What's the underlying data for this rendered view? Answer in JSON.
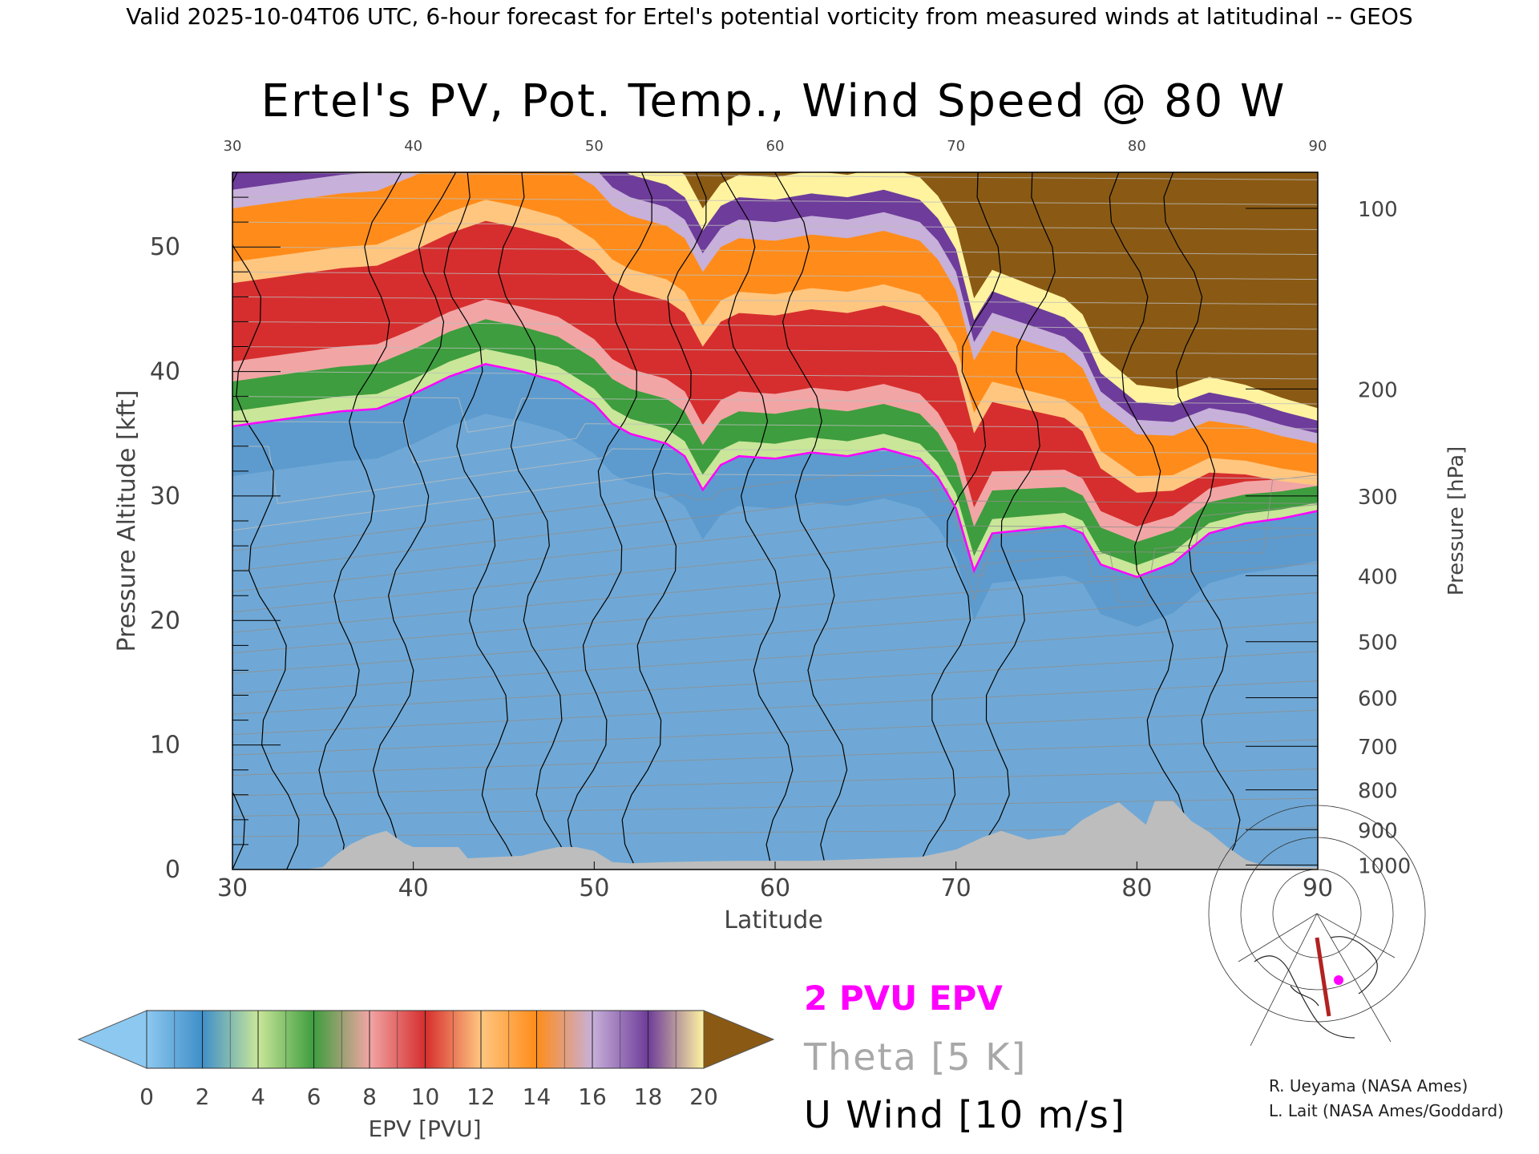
{
  "chart_data": {
    "type": "heatmap",
    "header": "Valid 2025-10-04T06 UTC, 6-hour forecast for Ertel's potential vorticity from measured winds at latitudinal -- GEOS",
    "title": "Ertel's PV, Pot. Temp., Wind Speed @ 80 W",
    "xlabel": "Latitude",
    "ylabel": "Pressure Altitude [kft]",
    "y2label": "Pressure [hPa]",
    "xlim": [
      30,
      90
    ],
    "ylim": [
      0,
      56
    ],
    "x_ticks": [
      30,
      40,
      50,
      60,
      70,
      80,
      90
    ],
    "y_ticks": [
      0,
      10,
      20,
      30,
      40,
      50
    ],
    "pressure_ticks": [
      {
        "hpa": "100",
        "kft": 53.1
      },
      {
        "hpa": "200",
        "kft": 38.6
      },
      {
        "hpa": "300",
        "kft": 30.0
      },
      {
        "hpa": "400",
        "kft": 23.6
      },
      {
        "hpa": "500",
        "kft": 18.3
      },
      {
        "hpa": "600",
        "kft": 13.8
      },
      {
        "hpa": "700",
        "kft": 9.9
      },
      {
        "hpa": "800",
        "kft": 6.4
      },
      {
        "hpa": "900",
        "kft": 3.2
      },
      {
        "hpa": "1000",
        "kft": 0.36
      }
    ],
    "tropopause_kft": [
      [
        30,
        35.6
      ],
      [
        33,
        36.2
      ],
      [
        36,
        36.8
      ],
      [
        38,
        37.0
      ],
      [
        40,
        38.2
      ],
      [
        42,
        39.6
      ],
      [
        44,
        40.6
      ],
      [
        46,
        40.0
      ],
      [
        48,
        39.2
      ],
      [
        50,
        37.4
      ],
      [
        51,
        35.8
      ],
      [
        52,
        35.0
      ],
      [
        54,
        34.2
      ],
      [
        55,
        33.2
      ],
      [
        56,
        30.5
      ],
      [
        57,
        32.5
      ],
      [
        58,
        33.2
      ],
      [
        60,
        33.0
      ],
      [
        62,
        33.5
      ],
      [
        64,
        33.2
      ],
      [
        66,
        33.8
      ],
      [
        68,
        33.0
      ],
      [
        69,
        31.5
      ],
      [
        70,
        29.0
      ],
      [
        71,
        24.0
      ],
      [
        72,
        27.0
      ],
      [
        74,
        27.3
      ],
      [
        76,
        27.6
      ],
      [
        77,
        27.0
      ],
      [
        78,
        24.5
      ],
      [
        80,
        23.5
      ],
      [
        82,
        24.6
      ],
      [
        84,
        27.0
      ],
      [
        86,
        27.8
      ],
      [
        88,
        28.2
      ],
      [
        90,
        28.8
      ]
    ],
    "terrain_kft": [
      [
        30,
        0
      ],
      [
        34,
        0
      ],
      [
        35,
        0.2
      ],
      [
        35.5,
        0.9
      ],
      [
        36.5,
        2.0
      ],
      [
        37.5,
        2.7
      ],
      [
        38.5,
        3.1
      ],
      [
        39.5,
        2.1
      ],
      [
        40,
        1.8
      ],
      [
        41,
        1.8
      ],
      [
        42.5,
        1.8
      ],
      [
        43,
        0.9
      ],
      [
        46,
        1.1
      ],
      [
        47,
        1.5
      ],
      [
        48,
        1.8
      ],
      [
        49,
        1.8
      ],
      [
        50,
        1.5
      ],
      [
        51,
        0.6
      ],
      [
        52,
        0.5
      ],
      [
        54,
        0.6
      ],
      [
        58,
        0.7
      ],
      [
        62,
        0.7
      ],
      [
        64,
        0.8
      ],
      [
        66,
        0.9
      ],
      [
        68,
        1.0
      ],
      [
        70,
        1.6
      ],
      [
        71.5,
        2.6
      ],
      [
        72.5,
        3.1
      ],
      [
        74,
        2.4
      ],
      [
        76,
        2.8
      ],
      [
        77,
        4.0
      ],
      [
        78,
        4.8
      ],
      [
        79,
        5.4
      ],
      [
        80.5,
        3.6
      ],
      [
        81,
        5.5
      ],
      [
        82,
        5.5
      ],
      [
        83,
        3.9
      ],
      [
        84,
        3.0
      ],
      [
        85,
        1.8
      ],
      [
        86,
        0.8
      ],
      [
        87,
        0.3
      ],
      [
        90,
        0.2
      ]
    ],
    "jet_axis_lat": [
      30,
      38.5,
      45,
      52.5,
      60.5,
      72,
      82
    ],
    "colorbar": {
      "label": "EPV [PVU]",
      "ticks": [
        "0",
        "2",
        "4",
        "6",
        "8",
        "10",
        "12",
        "14",
        "16",
        "18",
        "20"
      ],
      "colors": [
        "#8cc8f0",
        "#3f8fc9",
        "#c9e699",
        "#3e9d3e",
        "#f2a5a5",
        "#d62e2e",
        "#ffc680",
        "#ff8c1a",
        "#c7b0d9",
        "#6e3c9a",
        "#fff3a0",
        "#8a5a14"
      ]
    },
    "legend": [
      {
        "label": "2 PVU EPV",
        "color": "#ff00ff"
      },
      {
        "label": "Theta [5 K]",
        "color": "#a0a0a0"
      },
      {
        "label": "U Wind [10 m/s]",
        "color": "#000000"
      }
    ]
  },
  "credits": [
    "R. Ueyama (NASA Ames)",
    "L. Lait (NASA Ames/Goddard)"
  ]
}
